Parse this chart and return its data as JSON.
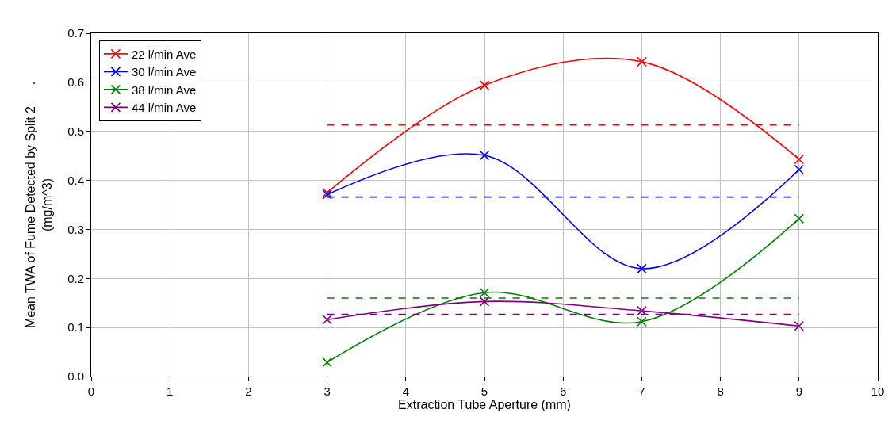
{
  "chart_data": {
    "type": "line",
    "xlabel": "Extraction Tube Aperture (mm)",
    "ylabel": "Mean TWA of Fume Detected by Split 2      .\n(mg/m^3)",
    "x": [
      3,
      5,
      7,
      9
    ],
    "series": [
      {
        "name": "22 l/min Ave",
        "color": "#ff0000",
        "values": [
          0.375,
          0.594,
          0.642,
          0.443
        ]
      },
      {
        "name": "30 l/min Ave",
        "color": "#0000ff",
        "values": [
          0.371,
          0.451,
          0.22,
          0.422
        ]
      },
      {
        "name": "38 l/min Ave",
        "color": "#008000",
        "values": [
          0.029,
          0.171,
          0.112,
          0.322
        ]
      },
      {
        "name": "44 l/min Ave",
        "color": "#800080",
        "values": [
          0.116,
          0.153,
          0.134,
          0.103
        ]
      },
      {
        "color": "#ff0000",
        "values": [
          0.513,
          0.513,
          0.513,
          0.513
        ],
        "line_style": "dashed",
        "marker": "none"
      },
      {
        "color": "#0000ff",
        "values": [
          0.366,
          0.366,
          0.366,
          0.366
        ],
        "line_style": "dashed",
        "marker": "none"
      },
      {
        "color": "#008000",
        "values": [
          0.16,
          0.16,
          0.16,
          0.16
        ],
        "line_style": "dashed",
        "marker": "none"
      },
      {
        "color": "#800080",
        "values": [
          0.127,
          0.127,
          0.127,
          0.127
        ],
        "line_style": "dashed",
        "marker": "none"
      }
    ],
    "xlim": [
      0,
      10
    ],
    "xticks": [
      0,
      1,
      2,
      3,
      4,
      5,
      6,
      7,
      8,
      9,
      10
    ],
    "ylim": [
      0,
      0.7
    ],
    "yticks": [
      {
        "value": 0,
        "label": "0.0"
      },
      0.1,
      0.2,
      0.3,
      0.4,
      0.5,
      0.6,
      0.7
    ],
    "grid": true,
    "legend": "top left",
    "line_style": "solid",
    "marker": "cross"
  }
}
